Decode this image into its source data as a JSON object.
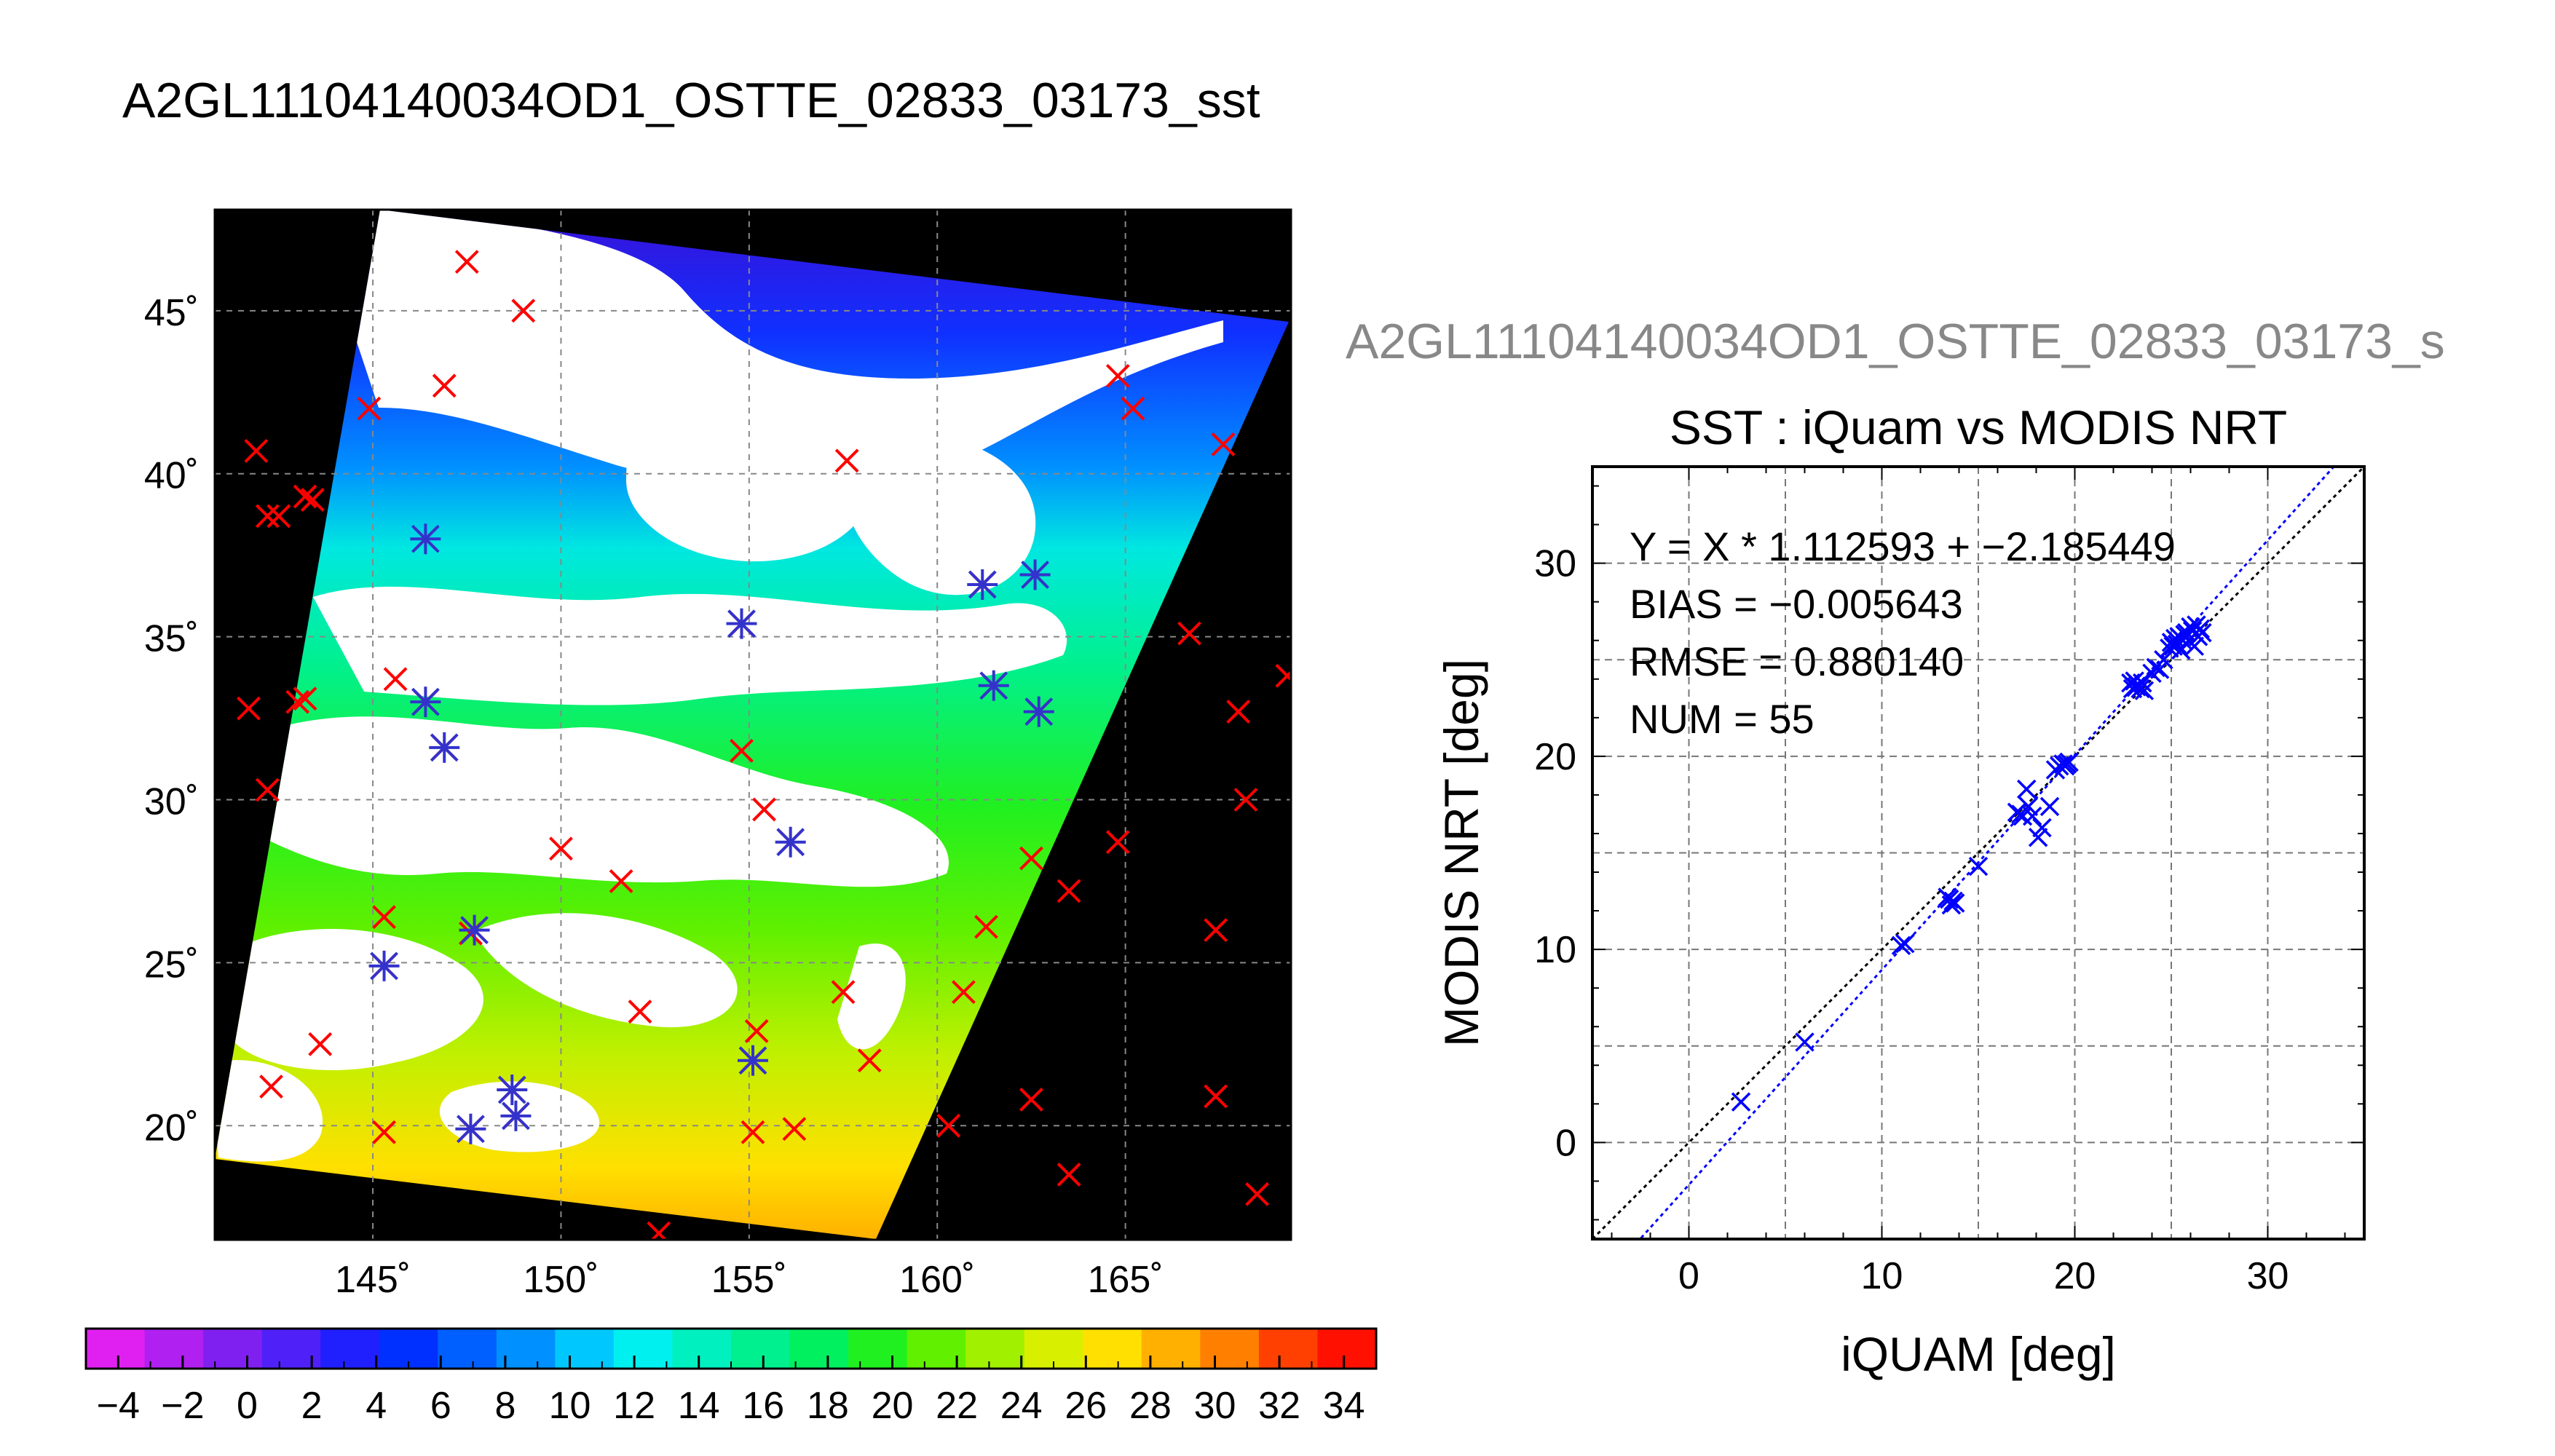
{
  "main_title": "A2GL11104140034OD1_OSTTE_02833_03173_sst",
  "map": {
    "lat_ticks": [
      "20˚",
      "25˚",
      "30˚",
      "35˚",
      "40˚",
      "45˚"
    ],
    "lon_ticks": [
      "145˚",
      "150˚",
      "155˚",
      "160˚",
      "165˚"
    ],
    "lon_range": [
      140.8,
      169.4
    ],
    "lat_range": [
      16.5,
      48.1
    ],
    "colors": {
      "background": "#000000",
      "cloud": "#ffffff",
      "grid": "#888888",
      "marker_red": "#ff0000",
      "marker_blue": "#3333cc"
    },
    "red_markers": [
      [
        147.5,
        46.5
      ],
      [
        149.0,
        45.0
      ],
      [
        144.9,
        42.0
      ],
      [
        146.9,
        42.7
      ],
      [
        141.9,
        40.7
      ],
      [
        142.2,
        38.7
      ],
      [
        142.5,
        38.7
      ],
      [
        143.2,
        39.3
      ],
      [
        143.4,
        39.2
      ],
      [
        157.6,
        40.4
      ],
      [
        164.8,
        43.0
      ],
      [
        165.2,
        42.0
      ],
      [
        167.6,
        40.9
      ],
      [
        146.4,
        38.0
      ],
      [
        141.7,
        32.8
      ],
      [
        142.2,
        30.3
      ],
      [
        143.0,
        33.0
      ],
      [
        143.2,
        33.1
      ],
      [
        145.6,
        33.7
      ],
      [
        146.4,
        33.0
      ],
      [
        146.9,
        31.6
      ],
      [
        154.8,
        35.4
      ],
      [
        154.8,
        31.5
      ],
      [
        155.4,
        29.7
      ],
      [
        156.1,
        28.7
      ],
      [
        150.0,
        28.5
      ],
      [
        151.6,
        27.5
      ],
      [
        145.3,
        26.4
      ],
      [
        145.3,
        24.9
      ],
      [
        147.6,
        25.9
      ],
      [
        147.7,
        26.0
      ],
      [
        161.2,
        36.6
      ],
      [
        162.6,
        36.9
      ],
      [
        161.5,
        33.5
      ],
      [
        162.7,
        32.7
      ],
      [
        166.7,
        35.1
      ],
      [
        168.0,
        32.7
      ],
      [
        169.3,
        33.8
      ],
      [
        168.2,
        30.0
      ],
      [
        164.8,
        28.7
      ],
      [
        162.5,
        28.2
      ],
      [
        163.5,
        27.2
      ],
      [
        161.3,
        26.1
      ],
      [
        160.7,
        24.1
      ],
      [
        167.4,
        26.0
      ],
      [
        157.5,
        24.1
      ],
      [
        158.2,
        22.0
      ],
      [
        152.1,
        23.5
      ],
      [
        155.2,
        22.9
      ],
      [
        155.1,
        22.0
      ],
      [
        142.3,
        21.2
      ],
      [
        143.6,
        22.5
      ],
      [
        145.3,
        19.8
      ],
      [
        147.6,
        19.9
      ],
      [
        148.7,
        21.1
      ],
      [
        148.8,
        20.3
      ],
      [
        155.1,
        19.8
      ],
      [
        156.2,
        19.9
      ],
      [
        160.3,
        20.0
      ],
      [
        162.5,
        20.8
      ],
      [
        167.4,
        20.9
      ],
      [
        163.5,
        18.5
      ],
      [
        168.5,
        17.9
      ],
      [
        152.6,
        16.7
      ]
    ],
    "blue_markers": [
      [
        146.4,
        38.0
      ],
      [
        146.4,
        33.0
      ],
      [
        146.9,
        31.6
      ],
      [
        154.8,
        35.4
      ],
      [
        156.1,
        28.7
      ],
      [
        145.3,
        24.9
      ],
      [
        147.7,
        26.0
      ],
      [
        161.2,
        36.6
      ],
      [
        162.6,
        36.9
      ],
      [
        161.5,
        33.5
      ],
      [
        162.7,
        32.7
      ],
      [
        155.1,
        22.0
      ],
      [
        147.6,
        19.9
      ],
      [
        148.7,
        21.1
      ],
      [
        148.8,
        20.3
      ]
    ]
  },
  "colorbar": {
    "tick_labels": [
      "−4",
      "−2",
      "0",
      "2",
      "4",
      "6",
      "8",
      "10",
      "12",
      "14",
      "16",
      "18",
      "20",
      "22",
      "24",
      "26",
      "28",
      "30",
      "32",
      "34"
    ],
    "range": [
      -5,
      35
    ],
    "colors": [
      "#e020f0",
      "#b020f0",
      "#8020f0",
      "#5020f8",
      "#2020ff",
      "#0030ff",
      "#0060ff",
      "#0090ff",
      "#00c8ff",
      "#00f0f0",
      "#00f0c0",
      "#00f090",
      "#00f060",
      "#20f020",
      "#60f000",
      "#a0f000",
      "#d8f000",
      "#ffe000",
      "#ffb000",
      "#ff8000",
      "#ff4000",
      "#ff1000"
    ]
  },
  "gray_title": "A2GL11104140034OD1_OSTTE_02833_03173_s",
  "chart_data": {
    "type": "scatter",
    "title": "SST : iQuam vs MODIS NRT",
    "xlabel": "iQUAM [deg]",
    "ylabel": "MODIS NRT [deg]",
    "xlim": [
      -5,
      35
    ],
    "ylim": [
      -5,
      35
    ],
    "xticks": [
      "0",
      "10",
      "20",
      "30"
    ],
    "yticks": [
      "0",
      "10",
      "20",
      "30"
    ],
    "grid": true,
    "annotations": [
      "Y = X * 1.112593 + −2.185449",
      "BIAS = −0.005643",
      "RMSE = 0.880140",
      "NUM = 55"
    ],
    "fit": {
      "slope": 1.112593,
      "intercept": -2.185449,
      "color": "#0000ff"
    },
    "identity_line": {
      "color": "#000000"
    },
    "marker_color": "#0000ff",
    "points": [
      [
        2.7,
        2.1
      ],
      [
        6.0,
        5.2
      ],
      [
        11.0,
        10.2
      ],
      [
        11.2,
        10.3
      ],
      [
        13.5,
        12.6
      ],
      [
        13.6,
        12.3
      ],
      [
        13.7,
        12.5
      ],
      [
        13.8,
        12.4
      ],
      [
        15.0,
        14.3
      ],
      [
        17.2,
        17.0
      ],
      [
        17.3,
        16.9
      ],
      [
        17.5,
        18.3
      ],
      [
        17.6,
        17.4
      ],
      [
        17.8,
        16.9
      ],
      [
        18.1,
        15.8
      ],
      [
        18.3,
        16.3
      ],
      [
        18.7,
        17.4
      ],
      [
        19.2,
        19.5
      ],
      [
        19.4,
        19.6
      ],
      [
        19.5,
        19.5
      ],
      [
        19.6,
        19.6
      ],
      [
        19.7,
        19.7
      ],
      [
        22.9,
        23.8
      ],
      [
        23.0,
        23.5
      ],
      [
        23.1,
        23.9
      ],
      [
        23.2,
        23.6
      ],
      [
        23.3,
        23.7
      ],
      [
        23.4,
        23.5
      ],
      [
        23.5,
        23.8
      ],
      [
        24.2,
        24.6
      ],
      [
        24.4,
        24.5
      ],
      [
        24.6,
        25.0
      ],
      [
        24.9,
        25.6
      ],
      [
        25.0,
        25.9
      ],
      [
        25.1,
        25.7
      ],
      [
        25.2,
        26.1
      ],
      [
        25.3,
        25.8
      ],
      [
        25.4,
        26.2
      ],
      [
        25.5,
        25.5
      ],
      [
        25.6,
        26.0
      ],
      [
        25.7,
        26.3
      ],
      [
        25.8,
        26.4
      ],
      [
        25.9,
        26.0
      ],
      [
        26.0,
        26.7
      ],
      [
        26.1,
        26.5
      ],
      [
        26.2,
        25.7
      ],
      [
        26.3,
        26.8
      ],
      [
        26.4,
        26.2
      ],
      [
        26.5,
        26.6
      ],
      [
        26.6,
        26.4
      ],
      [
        19.0,
        19.3
      ],
      [
        17.0,
        17.1
      ],
      [
        13.4,
        12.7
      ],
      [
        23.6,
        23.4
      ],
      [
        24.0,
        24.3
      ]
    ]
  }
}
